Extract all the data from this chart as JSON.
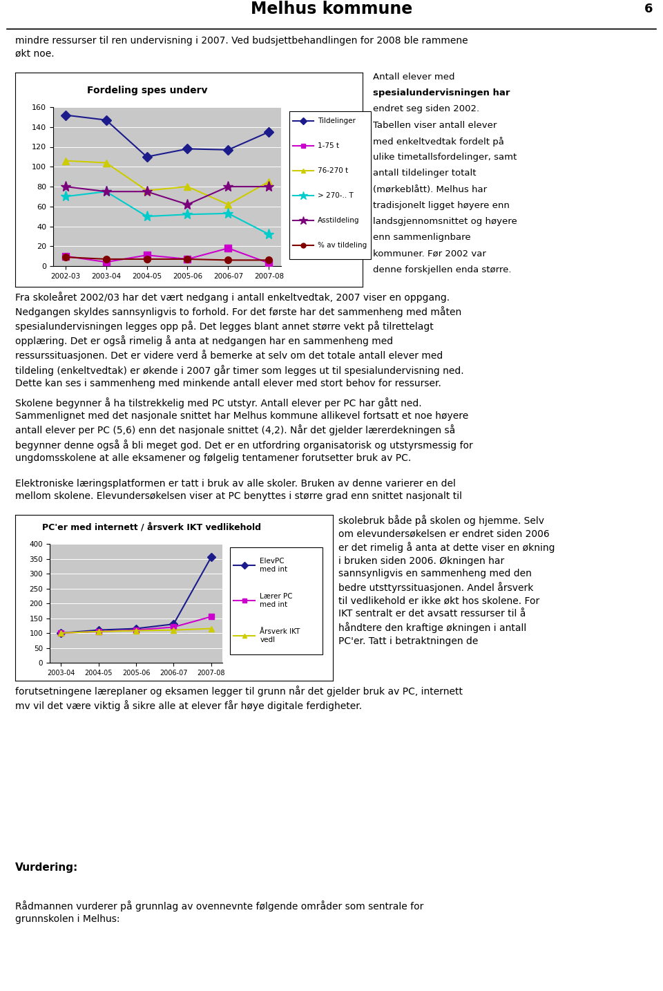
{
  "page_title": "Melhus kommune",
  "page_number": "6",
  "chart1": {
    "title": "Fordeling spes underv",
    "x_labels": [
      "2002-03",
      "2003-04",
      "2004-05",
      "2005-06",
      "2006-07",
      "2007-08"
    ],
    "y_min": 0,
    "y_max": 160,
    "y_ticks": [
      0,
      20,
      40,
      60,
      80,
      100,
      120,
      140,
      160
    ],
    "series": [
      {
        "name": "Tildelinger",
        "color": "#1B1B8C",
        "marker": "D",
        "values": [
          152,
          147,
          110,
          118,
          117,
          135
        ]
      },
      {
        "name": "1-75 t",
        "color": "#CC00CC",
        "marker": "s",
        "values": [
          10,
          4,
          11,
          7,
          18,
          3
        ]
      },
      {
        "name": "76-270 t",
        "color": "#CCCC00",
        "marker": "^",
        "values": [
          106,
          104,
          76,
          80,
          62,
          85
        ]
      },
      {
        "name": "> 270-.. T",
        "color": "#00CCCC",
        "marker": "*",
        "values": [
          70,
          75,
          50,
          52,
          53,
          32
        ]
      },
      {
        "name": "Asstildeling",
        "color": "#7B007B",
        "marker": "*",
        "values": [
          80,
          75,
          75,
          62,
          80,
          80
        ]
      },
      {
        "name": "% av tildeling",
        "color": "#800000",
        "marker": "o",
        "values": [
          9,
          7,
          7,
          7,
          6,
          6
        ]
      }
    ],
    "bg_color": "#C8C8C8"
  },
  "chart2": {
    "title": "PC'er med internett / årsverk IKT vedlikehold",
    "x_labels": [
      "2003-04",
      "2004-05",
      "2005-06",
      "2006-07",
      "2007-08"
    ],
    "y_min": 0,
    "y_max": 400,
    "y_ticks": [
      0,
      50,
      100,
      150,
      200,
      250,
      300,
      350,
      400
    ],
    "series": [
      {
        "name": "ElevPC\nmed int",
        "color": "#1B1B8C",
        "marker": "D",
        "values": [
          100,
          110,
          115,
          130,
          355
        ]
      },
      {
        "name": "Lærer PC\nmed int",
        "color": "#CC00CC",
        "marker": "s",
        "values": [
          100,
          105,
          110,
          120,
          155
        ]
      },
      {
        "name": "Årsverk IKT\nvedl",
        "color": "#CCCC00",
        "marker": "^",
        "values": [
          100,
          105,
          108,
          110,
          115
        ]
      }
    ],
    "bg_color": "#C8C8C8"
  },
  "text1": "mindre ressurser til ren undervisning i 2007. Ved budsjettbehandlingen for 2008 ble rammene\nøkt noe.",
  "right_text1_lines": [
    [
      "Antall elever med",
      false
    ],
    [
      "spesialundervisningen",
      true
    ],
    [
      " har",
      false
    ],
    [
      "endret seg siden 2002.",
      false
    ],
    [
      "Tabellen viser antall elever",
      false
    ],
    [
      "med enkeltvedtak fordelt på",
      false
    ],
    [
      "ulike timetallsfordelinger, samt",
      false
    ],
    [
      "antall tildelinger totalt",
      false
    ],
    [
      "(mørkeblått). Melhus har",
      false
    ],
    [
      "tradisjonelt ligget høyere enn",
      false
    ],
    [
      "landsgjennomsnittet og høyere",
      false
    ],
    [
      "enn sammenlignbare",
      false
    ],
    [
      "kommuner. Før 2002 var",
      false
    ],
    [
      "denne forskjellen enda større.",
      false
    ]
  ],
  "text2": "Fra skoleåret 2002/03 har det vært nedgang i antall enkeltvedtak, 2007 viser en oppgang.\nNedgangen skyldes sannsynligvis to forhold. For det første har det sammenheng med måten\nspesialundervisningen legges opp på. Det legges blant annet større vekt på tilrettelagt\nopplæring. Det er også rimelig å anta at nedgangen har en sammenheng med\nressurssituasjonen. Det er videre verd å bemerke at selv om det totale antall elever med\ntildeling (enkeltvedtak) er økende i 2007 går timer som legges ut til spesialundervisning ned.\nDette kan ses i sammenheng med minkende antall elever med stort behov for ressurser.",
  "text3": "Skolene begynner å ha tilstrekkelig med PC utstyr. Antall elever per PC har gått ned.\nSammenlignet med det nasjonale snittet har Melhus kommune allikevel fortsatt et noe høyere\nantall elever per PC (5,6) enn det nasjonale snittet (4,2). Når det gjelder lærerdekningen så\nbegynner denne også å bli meget god. Det er en utfordring organisatorisk og utstyrsmessig for\nungdomsskolene at alle eksamener og følgelig tentamener forutsetter bruk av PC.",
  "text4a": "Elektroniske læringsplatformen er tatt i bruk av alle skoler. Bruken av denne varierer en del\nmellom skolene. Elevundersøkelsen viser at PC benyttes i større grad enn snittet nasjonalt til",
  "right_text2": "skolebruk både på skolen og hjemme. Selv\nom elevundersøkelsen er endret siden 2006\ner det rimelig å anta at dette viser en økning\ni bruken siden 2006. Økningen har\nsannsynligvis en sammenheng med den\nbedre utsttyrssituasjonen. Andel årsverk\ntil vedlikehold er ikke økt hos skolene. For\nIKT sentralt er det avsatt ressurser til å\nhåndtere den kraftige økningen i antall\nPC'er. Tatt i betraktningen de",
  "text4b": "forutsetningene læreplaner og eksamen legger til grunn når det gjelder bruk av PC, internett\nmv vil det være viktig å sikre alle at elever får høye digitale ferdigheter.",
  "vurdering": "Vurdering:",
  "vurdering2": "Rådmannen vurderer på grunnlag av ovennevnte følgende områder som sentrale for\ngrunnskolen i Melhus:"
}
